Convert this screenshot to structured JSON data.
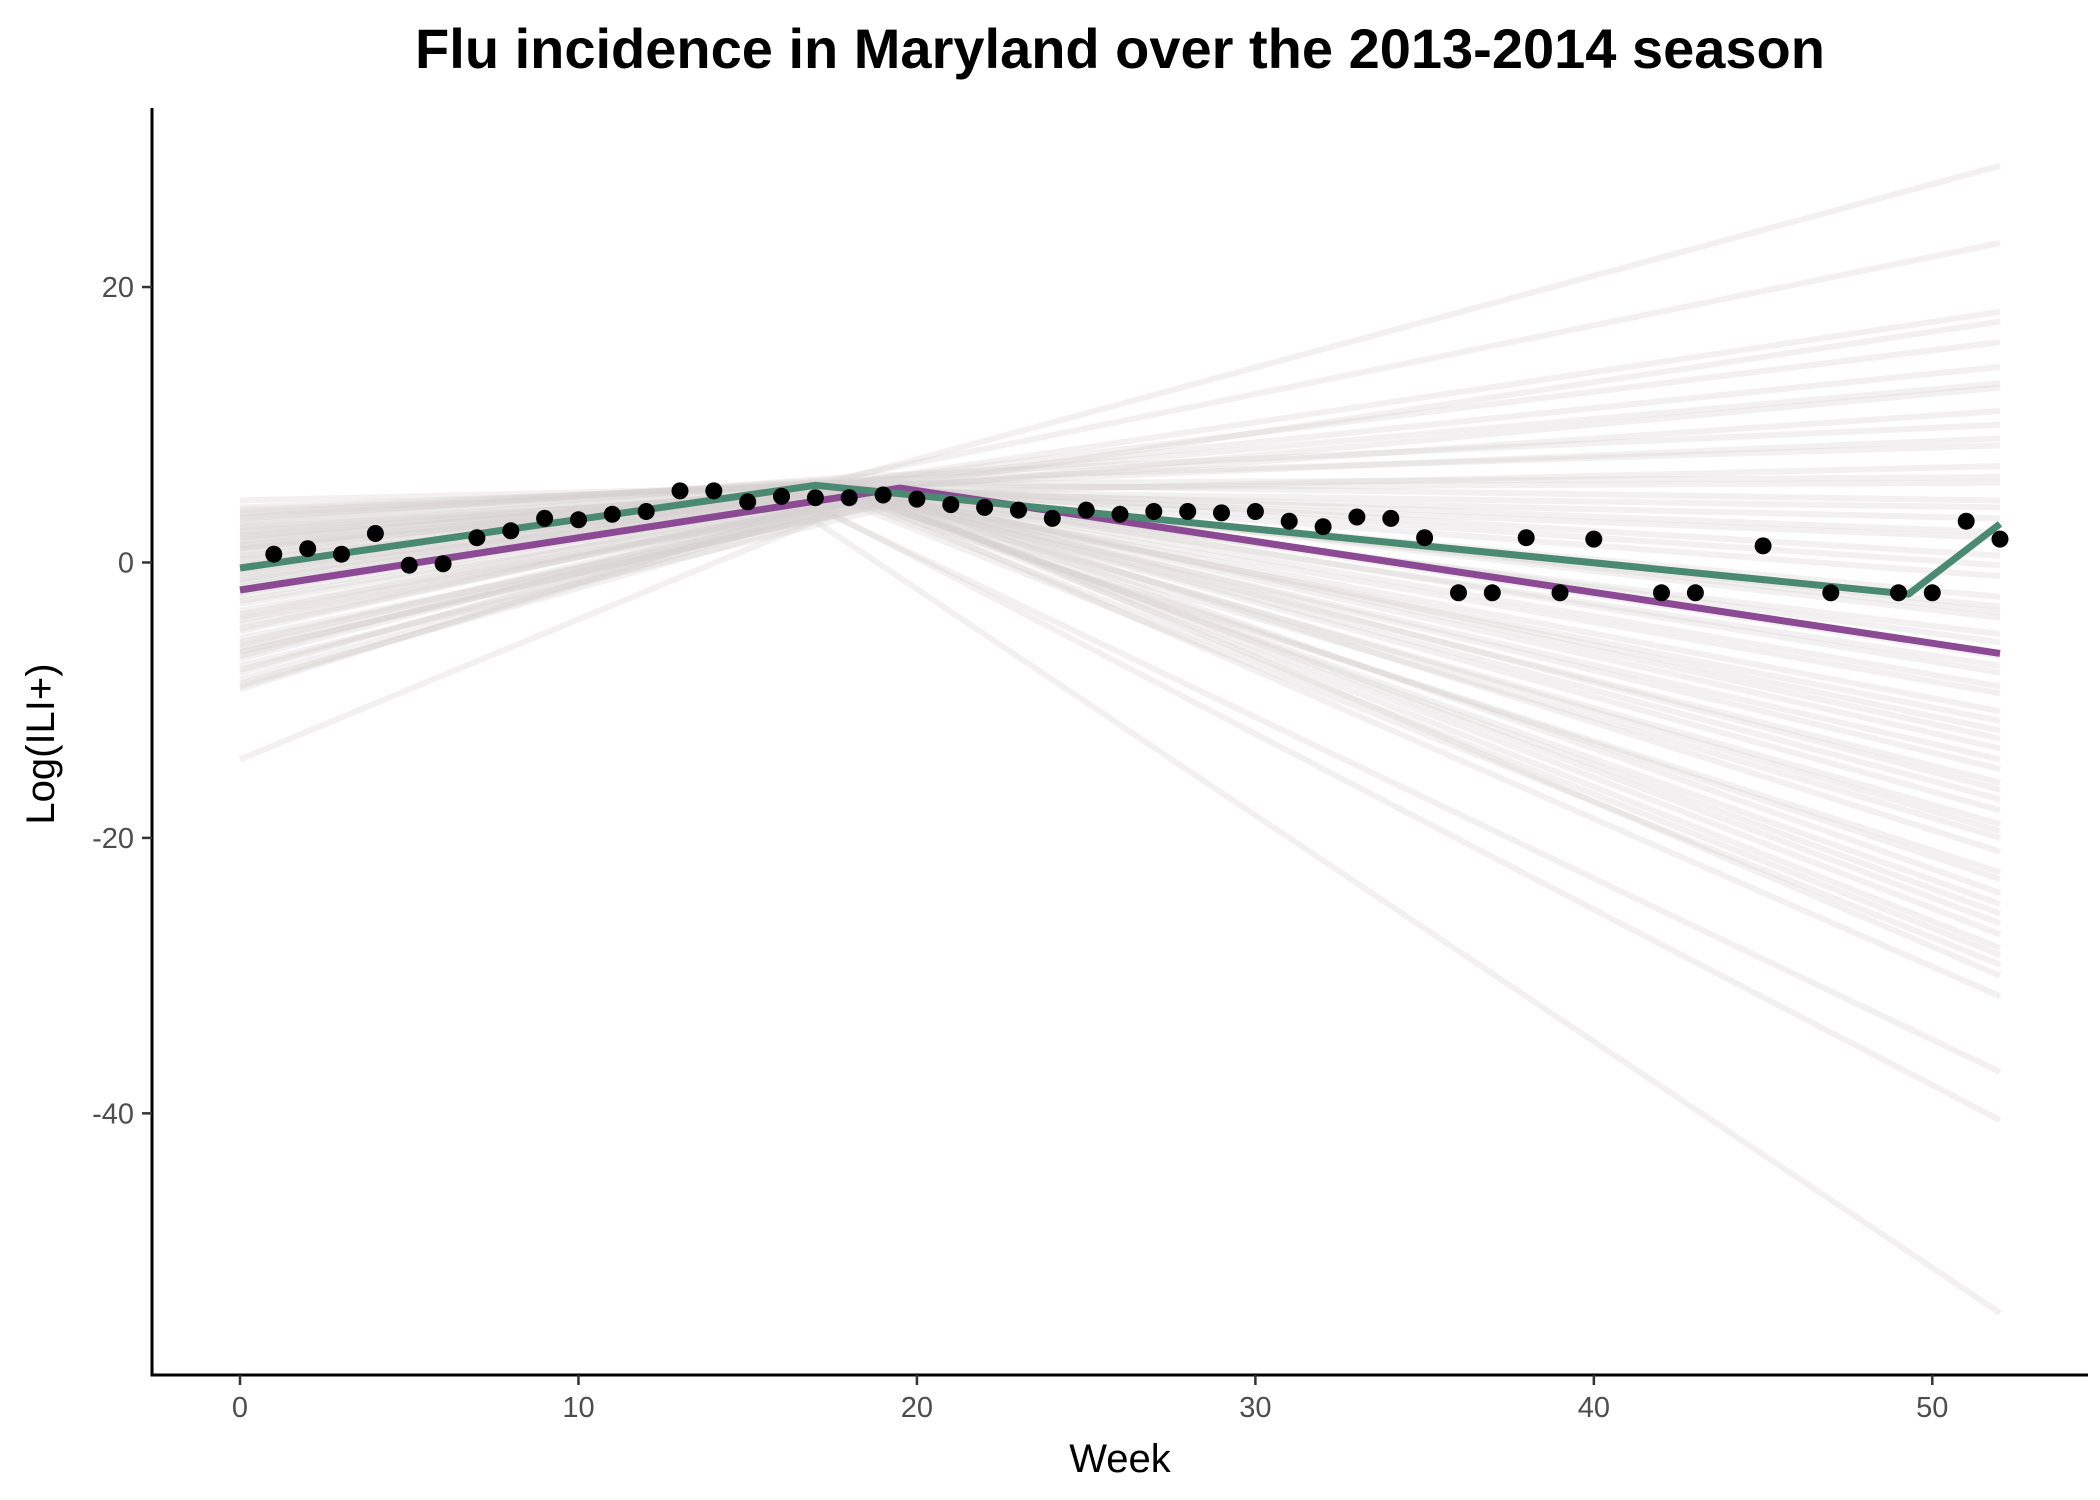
{
  "chart_data": {
    "type": "line",
    "title": "Flu incidence in Maryland over the 2013-2014 season",
    "xlabel": "Week",
    "ylabel": "Log(ILI+)",
    "xlim": [
      -2.6,
      54.6
    ],
    "ylim": [
      -59,
      33
    ],
    "x_ticks": [
      0,
      10,
      20,
      30,
      40,
      50
    ],
    "y_ticks": [
      -40,
      -20,
      0,
      20
    ],
    "grid": false,
    "legend": "none",
    "colors": {
      "observed": "#000000",
      "purple_fit": "#8b4a93",
      "green_fit": "#4a8a72",
      "samples": "#d8cfcf"
    },
    "observed": {
      "x": [
        1,
        2,
        3,
        4,
        5,
        6,
        7,
        8,
        9,
        10,
        11,
        12,
        13,
        14,
        15,
        16,
        17,
        18,
        19,
        20,
        21,
        22,
        23,
        24,
        25,
        26,
        27,
        28,
        29,
        30,
        31,
        32,
        33,
        34,
        35,
        36,
        37,
        38,
        39,
        40,
        42,
        43,
        45,
        47,
        49,
        50,
        51,
        52
      ],
      "y": [
        0.6,
        1.0,
        0.6,
        2.1,
        -0.2,
        -0.1,
        1.8,
        2.3,
        3.2,
        3.1,
        3.5,
        3.7,
        5.2,
        5.2,
        4.4,
        4.8,
        4.7,
        4.7,
        4.9,
        4.6,
        4.2,
        4.0,
        3.8,
        3.2,
        3.8,
        3.5,
        3.7,
        3.7,
        3.6,
        3.7,
        3.0,
        2.6,
        3.3,
        3.2,
        1.8,
        -2.2,
        -2.2,
        1.8,
        -2.2,
        1.7,
        -2.2,
        -2.2,
        1.2,
        -2.2,
        -2.2,
        -2.2,
        3.0,
        1.7
      ]
    },
    "series": [
      {
        "x": [
          0,
          19.5,
          52
        ],
        "y": [
          -2.0,
          5.4,
          -6.6
        ]
      },
      {
        "x": [
          0,
          17,
          49.3,
          52
        ],
        "y": [
          -0.4,
          5.6,
          -2.3,
          2.8
        ]
      }
    ],
    "samples": [
      {
        "k": 17.0,
        "peak": 5.5,
        "start": 4.5,
        "end": 28.8
      },
      {
        "k": 17.5,
        "peak": 6.0,
        "start": 3.2,
        "end": 23.2
      },
      {
        "k": 18.0,
        "peak": 5.8,
        "start": 3.5,
        "end": 18.2
      },
      {
        "k": 18.5,
        "peak": 5.2,
        "start": 2.5,
        "end": 17.5
      },
      {
        "k": 17.5,
        "peak": 5.6,
        "start": 4.0,
        "end": 14.2
      },
      {
        "k": 19.0,
        "peak": 5.3,
        "start": 1.8,
        "end": 12.7
      },
      {
        "k": 18.0,
        "peak": 6.2,
        "start": 3.0,
        "end": 10.0
      },
      {
        "k": 17.5,
        "peak": 5.9,
        "start": 2.8,
        "end": 8.5
      },
      {
        "k": 18.5,
        "peak": 5.0,
        "start": 1.2,
        "end": 7.0
      },
      {
        "k": 19.0,
        "peak": 5.4,
        "start": 0.5,
        "end": 5.8
      },
      {
        "k": 17.0,
        "peak": 5.8,
        "start": 3.6,
        "end": 4.5
      },
      {
        "k": 18.0,
        "peak": 5.1,
        "start": 1.0,
        "end": 3.2
      },
      {
        "k": 19.5,
        "peak": 4.9,
        "start": -0.5,
        "end": 1.8
      },
      {
        "k": 18.5,
        "peak": 5.5,
        "start": 2.0,
        "end": 0.5
      },
      {
        "k": 18.0,
        "peak": 5.3,
        "start": -1.2,
        "end": -1.0
      },
      {
        "k": 19.0,
        "peak": 5.0,
        "start": 0.2,
        "end": -2.5
      },
      {
        "k": 17.5,
        "peak": 5.7,
        "start": 2.3,
        "end": -4.0
      },
      {
        "k": 18.5,
        "peak": 4.8,
        "start": -2.0,
        "end": -5.2
      },
      {
        "k": 19.5,
        "peak": 5.2,
        "start": -1.5,
        "end": -6.8
      },
      {
        "k": 18.0,
        "peak": 5.6,
        "start": 1.5,
        "end": -8.0
      },
      {
        "k": 19.0,
        "peak": 4.7,
        "start": -3.0,
        "end": -9.5
      },
      {
        "k": 17.5,
        "peak": 5.4,
        "start": 0.8,
        "end": -10.8
      },
      {
        "k": 18.5,
        "peak": 5.1,
        "start": -2.5,
        "end": -12.2
      },
      {
        "k": 19.0,
        "peak": 4.9,
        "start": -4.0,
        "end": -13.5
      },
      {
        "k": 18.0,
        "peak": 5.3,
        "start": -0.8,
        "end": -15.0
      },
      {
        "k": 19.5,
        "peak": 4.6,
        "start": -3.5,
        "end": -16.5
      },
      {
        "k": 18.5,
        "peak": 5.0,
        "start": -5.0,
        "end": -18.0
      },
      {
        "k": 17.5,
        "peak": 5.5,
        "start": 1.0,
        "end": -19.5
      },
      {
        "k": 19.0,
        "peak": 4.8,
        "start": -4.5,
        "end": -21.0
      },
      {
        "k": 18.0,
        "peak": 4.5,
        "start": -6.0,
        "end": -22.5
      },
      {
        "k": 19.5,
        "peak": 4.4,
        "start": -5.5,
        "end": -24.0
      },
      {
        "k": 18.5,
        "peak": 4.7,
        "start": -7.0,
        "end": -25.5
      },
      {
        "k": 19.0,
        "peak": 4.3,
        "start": -6.5,
        "end": -27.0
      },
      {
        "k": 18.0,
        "peak": 4.6,
        "start": -8.0,
        "end": -28.5
      },
      {
        "k": 19.5,
        "peak": 4.2,
        "start": -7.5,
        "end": -30.0
      },
      {
        "k": 18.5,
        "peak": 4.5,
        "start": -8.5,
        "end": -31.5
      },
      {
        "k": 17.0,
        "peak": 4.0,
        "start": -9.2,
        "end": -37.0
      },
      {
        "k": 17.5,
        "peak": 3.5,
        "start": -6.5,
        "end": -40.5
      },
      {
        "k": 17.0,
        "peak": 3.0,
        "start": -14.3,
        "end": -54.5
      },
      {
        "k": 18.0,
        "peak": 5.8,
        "start": 3.8,
        "end": 16.0
      },
      {
        "k": 18.5,
        "peak": 5.4,
        "start": 2.2,
        "end": 11.0
      },
      {
        "k": 19.0,
        "peak": 5.6,
        "start": 1.6,
        "end": 9.0
      },
      {
        "k": 18.0,
        "peak": 5.2,
        "start": -0.2,
        "end": 4.0
      },
      {
        "k": 18.5,
        "peak": 5.1,
        "start": -1.8,
        "end": -3.2
      },
      {
        "k": 19.0,
        "peak": 4.9,
        "start": -2.8,
        "end": -7.5
      },
      {
        "k": 18.0,
        "peak": 5.0,
        "start": -3.8,
        "end": -11.5
      },
      {
        "k": 18.5,
        "peak": 4.8,
        "start": -4.8,
        "end": -14.3
      },
      {
        "k": 19.0,
        "peak": 4.6,
        "start": -5.8,
        "end": -17.2
      },
      {
        "k": 18.0,
        "peak": 4.7,
        "start": -6.8,
        "end": -20.0
      },
      {
        "k": 18.5,
        "peak": 4.5,
        "start": -7.8,
        "end": -23.0
      },
      {
        "k": 19.0,
        "peak": 4.4,
        "start": -8.8,
        "end": -26.2
      },
      {
        "k": 18.0,
        "peak": 4.3,
        "start": -9.0,
        "end": -29.2
      },
      {
        "k": 18.5,
        "peak": 5.3,
        "start": 0.0,
        "end": -5.8
      },
      {
        "k": 19.0,
        "peak": 5.0,
        "start": -1.0,
        "end": -9.0
      },
      {
        "k": 18.0,
        "peak": 5.4,
        "start": 0.4,
        "end": 2.2
      },
      {
        "k": 18.5,
        "peak": 5.7,
        "start": 2.6,
        "end": 6.2
      },
      {
        "k": 19.0,
        "peak": 5.9,
        "start": 3.3,
        "end": 13.0
      },
      {
        "k": 18.0,
        "peak": 4.9,
        "start": -2.2,
        "end": -19.0
      },
      {
        "k": 18.5,
        "peak": 4.6,
        "start": -4.2,
        "end": -24.8
      },
      {
        "k": 19.0,
        "peak": 4.2,
        "start": -6.2,
        "end": -28.0
      },
      {
        "k": 18.0,
        "peak": 5.1,
        "start": -1.4,
        "end": -16.0
      },
      {
        "k": 18.5,
        "peak": 5.2,
        "start": -0.6,
        "end": -12.8
      },
      {
        "k": 19.0,
        "peak": 5.3,
        "start": 1.3,
        "end": -0.2
      },
      {
        "k": 18.0,
        "peak": 5.5,
        "start": 1.9,
        "end": -3.6
      }
    ]
  }
}
